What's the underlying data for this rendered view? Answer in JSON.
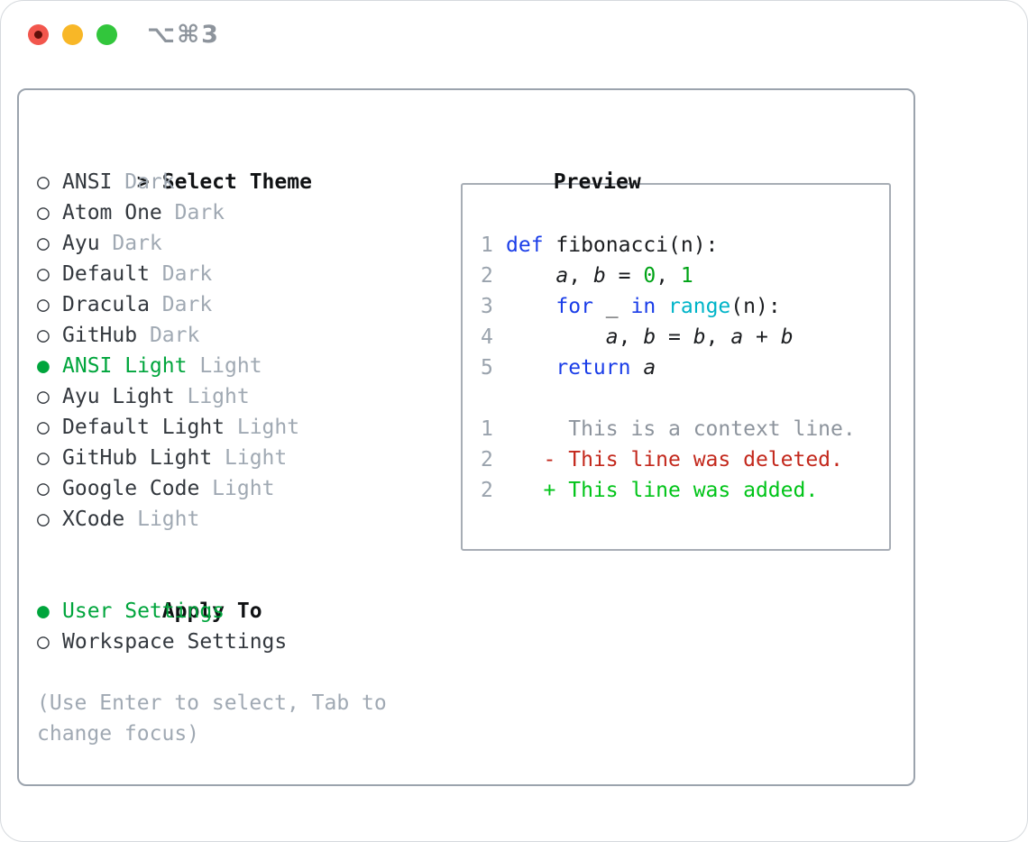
{
  "window_title": "⌥⌘3",
  "theme_list": {
    "prompt": ">",
    "header": "Select Theme",
    "marker_unselected": "○",
    "marker_selected": "●",
    "items": [
      {
        "name": "ANSI",
        "variant": "Dark",
        "selected": false
      },
      {
        "name": "Atom One",
        "variant": "Dark",
        "selected": false
      },
      {
        "name": "Ayu",
        "variant": "Dark",
        "selected": false
      },
      {
        "name": "Default",
        "variant": "Dark",
        "selected": false
      },
      {
        "name": "Dracula",
        "variant": "Dark",
        "selected": false
      },
      {
        "name": "GitHub",
        "variant": "Dark",
        "selected": false
      },
      {
        "name": "ANSI Light",
        "variant": "Light",
        "selected": true
      },
      {
        "name": "Ayu Light",
        "variant": "Light",
        "selected": false
      },
      {
        "name": "Default Light",
        "variant": "Light",
        "selected": false
      },
      {
        "name": "GitHub Light",
        "variant": "Light",
        "selected": false
      },
      {
        "name": "Google Code",
        "variant": "Light",
        "selected": false
      },
      {
        "name": "XCode",
        "variant": "Light",
        "selected": false
      }
    ]
  },
  "apply_to": {
    "header": "Apply To",
    "options": [
      {
        "label": "User Settings",
        "selected": true
      },
      {
        "label": "Workspace Settings",
        "selected": false
      }
    ]
  },
  "hint_lines": [
    "(Use Enter to select, Tab to",
    "change focus)"
  ],
  "preview": {
    "header": "Preview",
    "lines": [
      {
        "blank": true
      },
      {
        "num": "1",
        "segments": [
          {
            "t": "def",
            "c": "kw"
          },
          {
            "t": " fibonacci(n):",
            "c": "txt"
          }
        ]
      },
      {
        "num": "2",
        "segments": [
          {
            "t": "    ",
            "c": "txt"
          },
          {
            "t": "a",
            "c": "var"
          },
          {
            "t": ", ",
            "c": "txt"
          },
          {
            "t": "b",
            "c": "var"
          },
          {
            "t": " = ",
            "c": "txt"
          },
          {
            "t": "0",
            "c": "num"
          },
          {
            "t": ", ",
            "c": "txt"
          },
          {
            "t": "1",
            "c": "num"
          }
        ]
      },
      {
        "num": "3",
        "segments": [
          {
            "t": "    ",
            "c": "txt"
          },
          {
            "t": "for",
            "c": "kw"
          },
          {
            "t": " _ ",
            "c": "txt"
          },
          {
            "t": "in",
            "c": "kw"
          },
          {
            "t": " ",
            "c": "txt"
          },
          {
            "t": "range",
            "c": "fn"
          },
          {
            "t": "(n):",
            "c": "txt"
          }
        ]
      },
      {
        "num": "4",
        "segments": [
          {
            "t": "        ",
            "c": "txt"
          },
          {
            "t": "a",
            "c": "var"
          },
          {
            "t": ", ",
            "c": "txt"
          },
          {
            "t": "b",
            "c": "var"
          },
          {
            "t": " = ",
            "c": "txt"
          },
          {
            "t": "b",
            "c": "var"
          },
          {
            "t": ", ",
            "c": "txt"
          },
          {
            "t": "a",
            "c": "var"
          },
          {
            "t": " + ",
            "c": "txt"
          },
          {
            "t": "b",
            "c": "var"
          }
        ]
      },
      {
        "num": "5",
        "segments": [
          {
            "t": "    ",
            "c": "txt"
          },
          {
            "t": "return",
            "c": "kw"
          },
          {
            "t": " ",
            "c": "txt"
          },
          {
            "t": "a",
            "c": "var"
          }
        ]
      },
      {
        "blank": true
      },
      {
        "num": "1",
        "segments": [
          {
            "t": "     This is a context line.",
            "c": "ctx"
          }
        ]
      },
      {
        "num": "2",
        "segments": [
          {
            "t": "   - This line was deleted.",
            "c": "del"
          }
        ]
      },
      {
        "num": "2",
        "segments": [
          {
            "t": "   + This line was added.",
            "c": "add"
          }
        ]
      }
    ]
  },
  "colors": {
    "kw": "#1a3de8",
    "fn": "#00b4c8",
    "num": "#00a316",
    "add": "#00c418",
    "del": "#c3281c",
    "sel": "#00a53c",
    "ctx": "#8d949d",
    "muted": "#a0a9b3",
    "text": "#33383e",
    "heading": "#101214",
    "code": "#1b1d20",
    "ln": "#9aa3ad",
    "panel_border": "#9ba3ad",
    "preview_border": "#a7adb5",
    "window_border": "#d5d9dd",
    "traffic_red": "#f2564d",
    "traffic_red_dot": "#5f100a",
    "traffic_yellow": "#f8b727",
    "traffic_green": "#32c63c",
    "title_gray": "#8d949c"
  }
}
